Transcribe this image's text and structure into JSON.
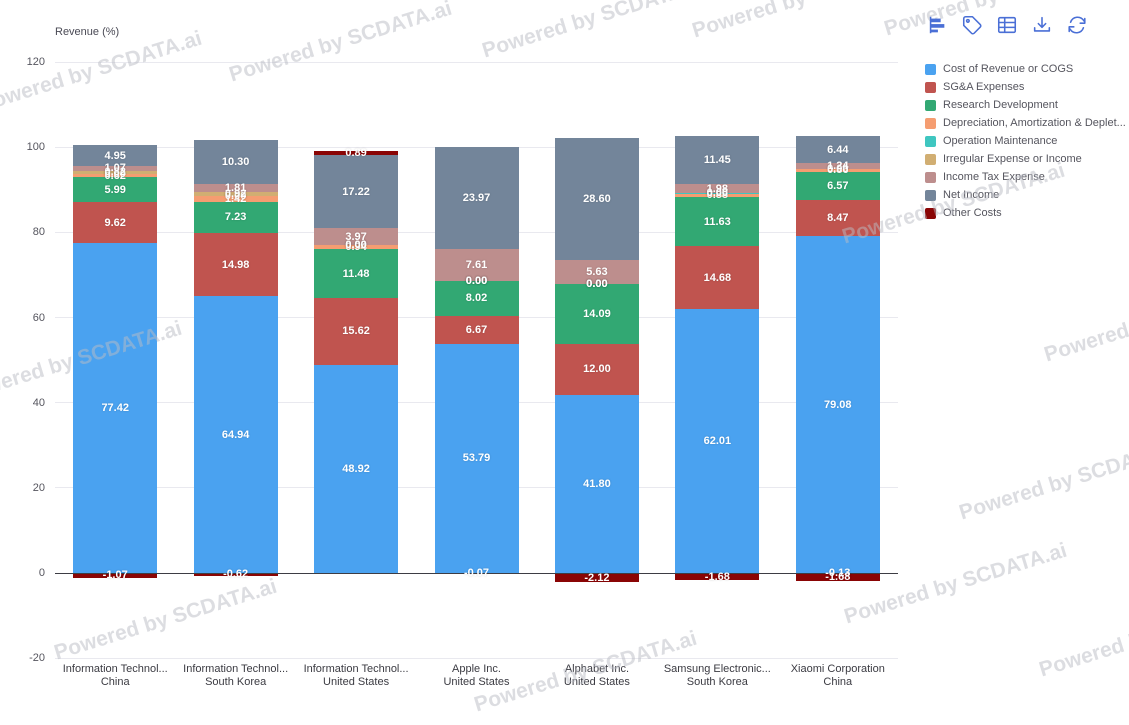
{
  "watermark": {
    "text": "Powered by SCDATA.ai"
  },
  "toolbar": {
    "accent_color": "#4a6fd6",
    "buttons": [
      {
        "icon": "bar-chart-icon"
      },
      {
        "icon": "tag-icon"
      },
      {
        "icon": "table-icon"
      },
      {
        "icon": "download-icon"
      },
      {
        "icon": "refresh-icon"
      }
    ]
  },
  "chart_data": {
    "type": "bar",
    "stacked": true,
    "title": "Revenue (%)",
    "ylabel": "Revenue (%)",
    "xlabel": "",
    "ylim": [
      -20,
      120
    ],
    "yticks": [
      120,
      100,
      80,
      60,
      40,
      20,
      0,
      -20
    ],
    "grid": true,
    "legend_position": "right",
    "categories": [
      {
        "label": "Information Technol...",
        "sublabel": "China"
      },
      {
        "label": "Information Technol...",
        "sublabel": "South Korea"
      },
      {
        "label": "Information Technol...",
        "sublabel": "United States"
      },
      {
        "label": "Apple Inc.",
        "sublabel": "United States"
      },
      {
        "label": "Alphabet Inc.",
        "sublabel": "United States"
      },
      {
        "label": "Samsung Electronic...",
        "sublabel": "South Korea"
      },
      {
        "label": "Xiaomi Corporation",
        "sublabel": "China"
      }
    ],
    "series": [
      {
        "name": "Cost of Revenue or COGS",
        "color": "#4aa2f0",
        "values": [
          77.42,
          64.94,
          48.92,
          53.79,
          41.8,
          62.01,
          79.08
        ]
      },
      {
        "name": "SG&A Expenses",
        "color": "#c0544f",
        "values": [
          9.62,
          14.98,
          15.62,
          6.67,
          12.0,
          14.68,
          8.47
        ]
      },
      {
        "name": "Research Development",
        "color": "#32a873",
        "values": [
          5.99,
          7.23,
          11.48,
          8.02,
          14.09,
          11.63,
          6.57
        ]
      },
      {
        "name": "Depreciation, Amortization & Deplet...",
        "color": "#f59d71",
        "values": [
          0.62,
          1.42,
          0.94,
          0.0,
          0.0,
          0.88,
          0.86
        ]
      },
      {
        "name": "Operation Maintenance",
        "color": "#3fc6c0",
        "values": [
          0.0,
          0.0,
          0.0,
          0.0,
          0.0,
          0.06,
          -0.13
        ]
      },
      {
        "name": "Irregular Expense or Income",
        "color": "#d1ae72",
        "values": [
          0.82,
          0.92,
          0.0,
          0.0,
          0.0,
          0.0,
          0.0
        ]
      },
      {
        "name": "Income Tax Expense",
        "color": "#bd8e8d",
        "values": [
          1.07,
          1.81,
          3.97,
          7.61,
          5.63,
          1.98,
          1.24
        ]
      },
      {
        "name": "Net Income",
        "color": "#73859a",
        "values": [
          4.95,
          10.3,
          17.22,
          23.97,
          28.6,
          11.45,
          6.44
        ]
      },
      {
        "name": "Other Costs",
        "color": "#8a0505",
        "values": [
          -1.07,
          -0.62,
          0.89,
          -0.07,
          -2.12,
          -1.68,
          -1.68
        ]
      }
    ]
  }
}
